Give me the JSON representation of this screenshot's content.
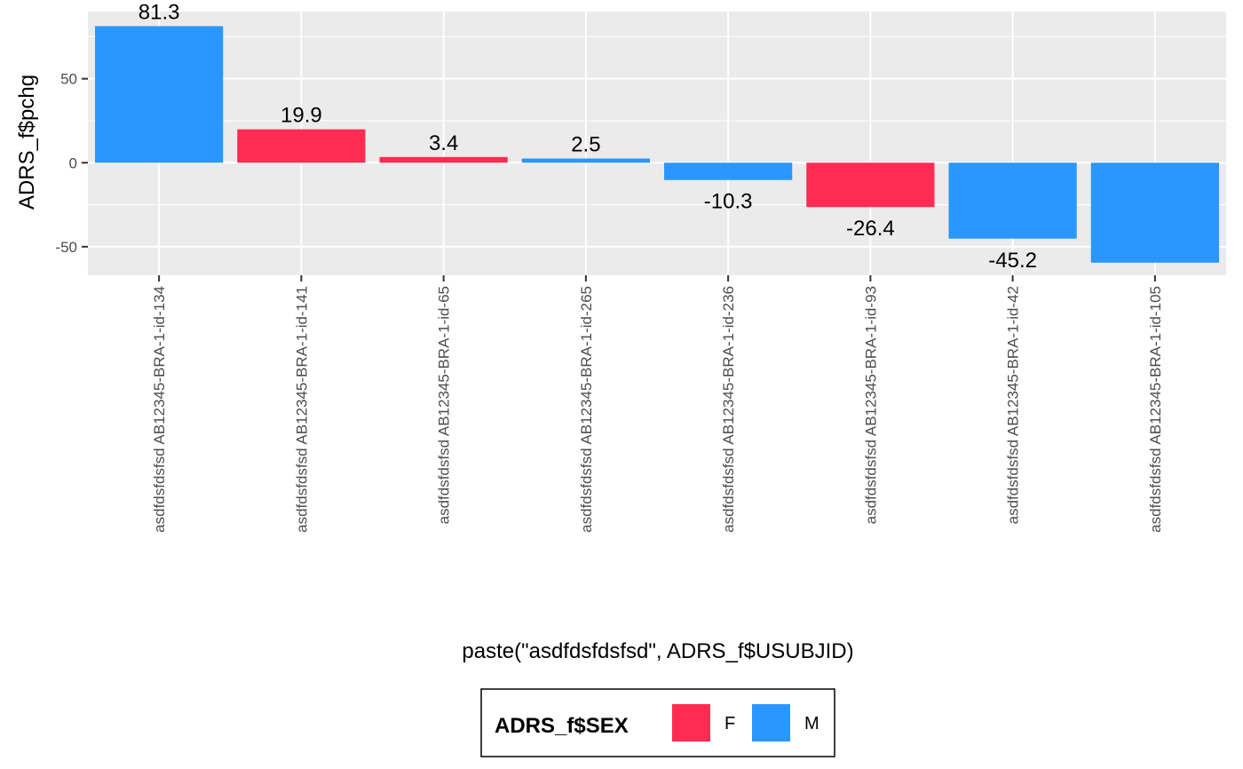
{
  "chart_data": {
    "type": "bar",
    "xlabel": "paste(\"asdfdsfdsfsd\", ADRS_f$USUBJID)",
    "ylabel": "ADRS_f$pchg",
    "ylim": [
      -67,
      90
    ],
    "yticks": [
      -50,
      0,
      50
    ],
    "grid": true,
    "legend_position": "bottom",
    "legend": {
      "title": "ADRS_f$SEX",
      "entries": [
        {
          "key": "F",
          "label": "F",
          "color": "#FF2B52"
        },
        {
          "key": "M",
          "label": "M",
          "color": "#2997FF"
        }
      ]
    },
    "categories": [
      "asdfdsfdsfsd AB12345-BRA-1-id-134",
      "asdfdsfdsfsd AB12345-BRA-1-id-141",
      "asdfdsfdsfsd AB12345-BRA-1-id-65",
      "asdfdsfdsfsd AB12345-BRA-1-id-265",
      "asdfdsfdsfsd AB12345-BRA-1-id-236",
      "asdfdsfdsfsd AB12345-BRA-1-id-93",
      "asdfdsfdsfsd AB12345-BRA-1-id-42",
      "asdfdsfdsfsd AB12345-BRA-1-id-105"
    ],
    "values": [
      81.3,
      19.9,
      3.4,
      2.5,
      -10.3,
      -26.4,
      -45.2,
      -59.5
    ],
    "labels": [
      "81.3",
      "19.9",
      "3.4",
      "2.5",
      "-10.3",
      "-26.4",
      "-45.2",
      ""
    ],
    "group": [
      "M",
      "F",
      "F",
      "M",
      "M",
      "F",
      "M",
      "M"
    ]
  }
}
